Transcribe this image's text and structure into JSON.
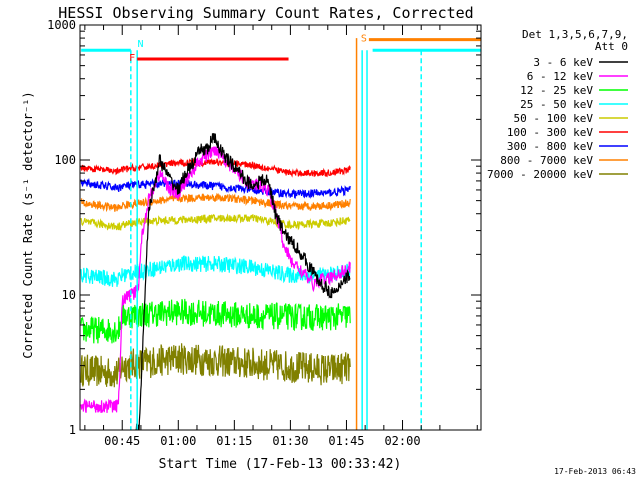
{
  "chart_data": {
    "type": "line",
    "title": "HESSI Observing Summary Count Rates, Corrected",
    "xlabel": "Start Time (17-Feb-13 00:33:42)",
    "ylabel": "Corrected Count Rate (s⁻¹ detector⁻¹)",
    "yscale": "log",
    "xlim_minutes_after_midnight": [
      33.7,
      141.0
    ],
    "ylim": [
      1,
      1000
    ],
    "x_ticks": [
      {
        "label": "00:45",
        "minutes": 45
      },
      {
        "label": "01:00",
        "minutes": 60
      },
      {
        "label": "01:15",
        "minutes": 75
      },
      {
        "label": "01:30",
        "minutes": 90
      },
      {
        "label": "01:45",
        "minutes": 105
      },
      {
        "label": "02:00",
        "minutes": 120
      }
    ],
    "y_ticks": [
      {
        "label": "1",
        "value": 1
      },
      {
        "label": "10",
        "value": 10
      },
      {
        "label": "100",
        "value": 100
      },
      {
        "label": "1000",
        "value": 1000
      }
    ],
    "legend": {
      "placement": "right",
      "header_lines": [
        "Det 1,3,5,6,7,9,",
        "Att 0"
      ],
      "entries": [
        {
          "label": "3 - 6 keV",
          "color": "#000000"
        },
        {
          "label": "6 - 12 keV",
          "color": "#ff00ff"
        },
        {
          "label": "12 - 25 keV",
          "color": "#00ff00"
        },
        {
          "label": "25 - 50 keV",
          "color": "#00ffff"
        },
        {
          "label": "50 - 100 keV",
          "color": "#cccc00"
        },
        {
          "label": "100 - 300 keV",
          "color": "#ff0000"
        },
        {
          "label": "300 - 800 keV",
          "color": "#0000ff"
        },
        {
          "label": "800 - 7000 keV",
          "color": "#ff8000"
        },
        {
          "label": "7000 - 20000 keV",
          "color": "#808000"
        }
      ]
    },
    "series": [
      {
        "name": "3 - 6 keV",
        "color": "#000000",
        "noise": 0.05,
        "x": [
          48.5,
          49.5,
          52,
          55,
          58,
          60,
          62,
          64,
          66,
          68,
          69,
          70,
          71,
          72,
          74,
          76,
          78,
          80,
          82,
          84,
          85,
          86,
          88,
          90,
          92,
          94,
          96,
          98,
          100,
          102,
          104,
          106
        ],
        "y": [
          1,
          1,
          40,
          100,
          70,
          60,
          80,
          95,
          120,
          120,
          145,
          140,
          125,
          110,
          95,
          85,
          70,
          65,
          70,
          70,
          55,
          40,
          30,
          25,
          22,
          18,
          15,
          12,
          11,
          10,
          13,
          14
        ]
      },
      {
        "name": "6 - 12 keV",
        "color": "#ff00ff",
        "noise": 0.05,
        "x": [
          34,
          44,
          45,
          47,
          48,
          49.5,
          50,
          52,
          55,
          58,
          60,
          62,
          64,
          66,
          68,
          70,
          71,
          72,
          74,
          76,
          78,
          80,
          82,
          84,
          86,
          88,
          90,
          92,
          94,
          96,
          98,
          100,
          102,
          104,
          106
        ],
        "y": [
          1.5,
          1.5,
          9,
          10,
          10,
          12,
          25,
          50,
          80,
          60,
          55,
          70,
          85,
          100,
          110,
          120,
          115,
          105,
          90,
          80,
          70,
          65,
          65,
          60,
          42,
          25,
          18,
          16,
          14,
          12,
          13,
          13,
          14,
          15,
          16
        ]
      },
      {
        "name": "12 - 25 keV",
        "color": "#00ff00",
        "noise": 0.1,
        "x": [
          34,
          44,
          45,
          60,
          80,
          100,
          106
        ],
        "y": [
          5.5,
          5.5,
          7.0,
          7.5,
          7.0,
          6.8,
          7.0
        ]
      },
      {
        "name": "25 - 50 keV",
        "color": "#00ffff",
        "noise": 0.06,
        "x": [
          34,
          44,
          45,
          50,
          60,
          70,
          80,
          90,
          100,
          106
        ],
        "y": [
          14,
          13,
          14,
          15,
          17,
          17,
          16,
          14,
          14,
          15
        ]
      },
      {
        "name": "50 - 100 keV",
        "color": "#cccc00",
        "noise": 0.03,
        "x": [
          34,
          44,
          45,
          50,
          60,
          70,
          80,
          90,
          100,
          106
        ],
        "y": [
          35,
          32,
          33,
          35,
          36,
          37,
          37,
          33,
          34,
          36
        ]
      },
      {
        "name": "100 - 300 keV",
        "color": "#ff0000",
        "noise": 0.025,
        "x": [
          34,
          44,
          45,
          50,
          60,
          70,
          80,
          90,
          100,
          106
        ],
        "y": [
          88,
          82,
          85,
          88,
          95,
          97,
          92,
          80,
          80,
          85
        ]
      },
      {
        "name": "300 - 800 keV",
        "color": "#0000ff",
        "noise": 0.03,
        "x": [
          34,
          44,
          45,
          50,
          60,
          70,
          80,
          90,
          100,
          106
        ],
        "y": [
          68,
          62,
          64,
          66,
          67,
          64,
          60,
          56,
          57,
          60
        ]
      },
      {
        "name": "800 - 7000 keV",
        "color": "#ff8000",
        "noise": 0.03,
        "x": [
          34,
          44,
          45,
          50,
          60,
          70,
          80,
          90,
          100,
          106
        ],
        "y": [
          48,
          44,
          46,
          48,
          52,
          53,
          50,
          45,
          46,
          48
        ]
      },
      {
        "name": "7000 - 20000 keV",
        "color": "#808000",
        "noise": 0.12,
        "x": [
          34,
          44,
          45,
          60,
          80,
          100,
          106
        ],
        "y": [
          2.8,
          2.6,
          3.0,
          3.4,
          3.1,
          2.8,
          2.9
        ]
      }
    ],
    "state_bars": [
      {
        "label": "",
        "color": "#00ffff",
        "x_start": 34,
        "x_end": 47.3,
        "y": 650
      },
      {
        "label": "N",
        "color": "#00ffff",
        "x_start": 48.0,
        "x_end": 48.0,
        "y": 700
      },
      {
        "label": "F",
        "color": "#ff0000",
        "x_start": 49.0,
        "x_end": 89.5,
        "y": 560
      },
      {
        "label": "S",
        "color": "#ff8000",
        "x_start": 111.0,
        "x_end": 141.0,
        "y": 780
      },
      {
        "label": "",
        "color": "#00ffff",
        "x_start": 112.0,
        "x_end": 141.0,
        "y": 650
      }
    ],
    "vertical_markers": [
      {
        "x": 47.3,
        "color": "#00ffff",
        "style": "dashed",
        "y_top": 650
      },
      {
        "x": 49.0,
        "color": "#00ffff",
        "style": "solid",
        "y_top": 650
      },
      {
        "x": 107.7,
        "color": "#ff8000",
        "style": "solid",
        "y_top": 800
      },
      {
        "x": 109.2,
        "color": "#00ffff",
        "style": "solid",
        "y_top": 650
      },
      {
        "x": 110.5,
        "color": "#00ffff",
        "style": "solid",
        "y_top": 650
      },
      {
        "x": 125.0,
        "color": "#00ffff",
        "style": "dashed",
        "y_top": 650
      }
    ],
    "footer": "17-Feb-2013 06:43"
  }
}
